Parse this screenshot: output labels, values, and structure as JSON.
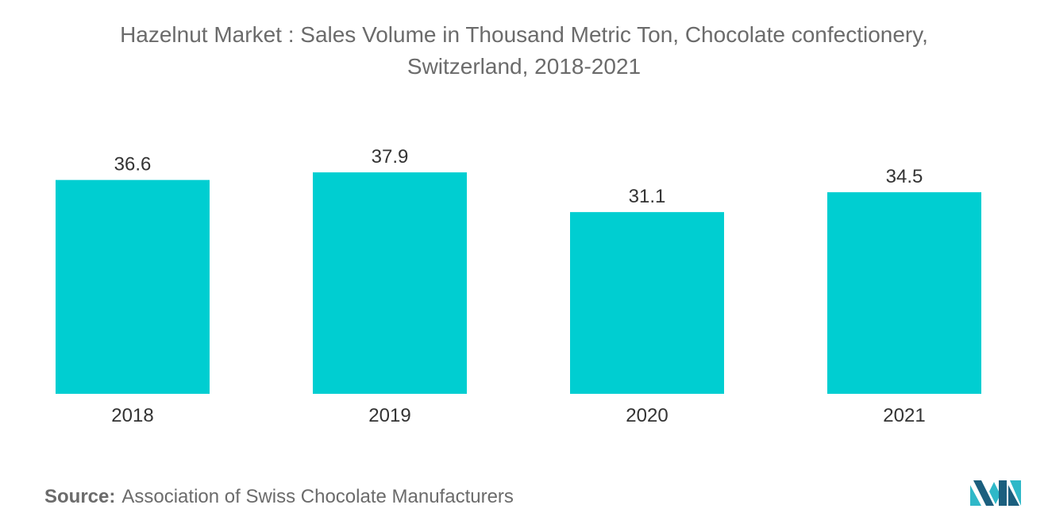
{
  "header": {
    "title_line1": "Hazelnut Market : Sales Volume in Thousand Metric Ton, Chocolate confectionery,",
    "title_line2": "Switzerland, 2018-2021"
  },
  "footer": {
    "source_label": "Source:",
    "source_text": "Association of Swiss Chocolate Manufacturers",
    "logo_icon": "mordor-intelligence-logo-icon"
  },
  "colors": {
    "bar": "#00CED1",
    "text": "#333333",
    "muted": "#6b6b6b",
    "logo_dark": "#1b5f7e",
    "logo_light": "#2fb8c8"
  },
  "chart_data": {
    "type": "bar",
    "title": "Hazelnut Market : Sales Volume in Thousand Metric Ton, Chocolate confectionery, Switzerland, 2018-2021",
    "categories": [
      "2018",
      "2019",
      "2020",
      "2021"
    ],
    "values": [
      36.6,
      37.9,
      31.1,
      34.5
    ],
    "value_labels": [
      "36.6",
      "37.9",
      "31.1",
      "34.5"
    ],
    "xlabel": "",
    "ylabel": "",
    "ylim": [
      0,
      39
    ],
    "grid": false,
    "legend": "none"
  }
}
